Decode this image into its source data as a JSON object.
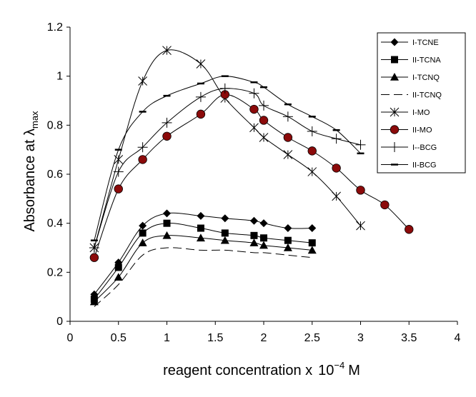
{
  "chart_data": {
    "type": "line",
    "title": "",
    "xlabel": "reagent concentration x",
    "xlabel_power": "10",
    "xlabel_exponent": "−4",
    "xlabel_unit": "M",
    "ylabel": "Absorbance at λ",
    "ylabel_subscript": "max",
    "xlim": [
      0,
      4
    ],
    "ylim": [
      0,
      1.2
    ],
    "xticks": [
      0,
      0.5,
      1,
      1.5,
      2,
      2.5,
      3,
      3.5,
      4
    ],
    "xtick_labels": [
      "0",
      "0.5",
      "1",
      "1.5",
      "2",
      "2.5",
      "3",
      "3.5",
      "4"
    ],
    "yticks": [
      0,
      0.2,
      0.4,
      0.6,
      0.8,
      1.0,
      1.2
    ],
    "ytick_labels": [
      "0",
      "0.2",
      "0.4",
      "0.6",
      "0.8",
      "1",
      "1.2"
    ],
    "grid": false,
    "legend_position": "top-right",
    "series": [
      {
        "name": "I-TCNE",
        "marker": "diamond",
        "dash": "",
        "color": "#000000",
        "x": [
          0.25,
          0.5,
          0.75,
          1.0,
          1.35,
          1.6,
          1.9,
          2.0,
          2.25,
          2.5
        ],
        "y": [
          0.11,
          0.24,
          0.39,
          0.44,
          0.43,
          0.42,
          0.41,
          0.4,
          0.38,
          0.38
        ]
      },
      {
        "name": "II-TCNA",
        "marker": "square",
        "dash": "",
        "color": "#000000",
        "x": [
          0.25,
          0.5,
          0.75,
          1.0,
          1.35,
          1.6,
          1.9,
          2.0,
          2.25,
          2.5
        ],
        "y": [
          0.09,
          0.22,
          0.36,
          0.4,
          0.38,
          0.36,
          0.35,
          0.34,
          0.33,
          0.32
        ]
      },
      {
        "name": "I-TCNQ",
        "marker": "triangle",
        "dash": "",
        "color": "#000000",
        "x": [
          0.25,
          0.5,
          0.75,
          1.0,
          1.35,
          1.6,
          1.9,
          2.0,
          2.25,
          2.5
        ],
        "y": [
          0.08,
          0.18,
          0.32,
          0.35,
          0.34,
          0.33,
          0.32,
          0.31,
          0.3,
          0.29
        ]
      },
      {
        "name": "II-TCNQ",
        "marker": "none",
        "dash": "12,6",
        "color": "#000000",
        "x": [
          0.25,
          0.5,
          0.75,
          1.0,
          1.35,
          1.6,
          1.9,
          2.0,
          2.25,
          2.5
        ],
        "y": [
          0.06,
          0.15,
          0.27,
          0.3,
          0.29,
          0.29,
          0.28,
          0.28,
          0.27,
          0.26
        ]
      },
      {
        "name": "I-MO",
        "marker": "asterisk",
        "dash": "",
        "color": "#000000",
        "x": [
          0.25,
          0.5,
          0.75,
          1.0,
          1.35,
          1.6,
          1.9,
          2.0,
          2.25,
          2.5,
          2.75,
          3.0
        ],
        "y": [
          0.3,
          0.66,
          0.98,
          1.105,
          1.05,
          0.91,
          0.79,
          0.75,
          0.68,
          0.61,
          0.51,
          0.39
        ]
      },
      {
        "name": "II-MO",
        "marker": "circle",
        "dash": "",
        "color": "#000000",
        "x": [
          0.25,
          0.5,
          0.75,
          1.0,
          1.35,
          1.6,
          1.9,
          2.0,
          2.25,
          2.5,
          2.75,
          3.0,
          3.25,
          3.5
        ],
        "y": [
          0.26,
          0.54,
          0.66,
          0.755,
          0.845,
          0.925,
          0.865,
          0.82,
          0.75,
          0.695,
          0.625,
          0.535,
          0.475,
          0.375
        ]
      },
      {
        "name": "I--BCG",
        "marker": "plus",
        "dash": "",
        "color": "#000000",
        "x": [
          0.25,
          0.5,
          0.75,
          1.0,
          1.35,
          1.6,
          1.9,
          2.0,
          2.25,
          2.5,
          2.75,
          3.0
        ],
        "y": [
          0.3,
          0.61,
          0.71,
          0.81,
          0.915,
          0.95,
          0.93,
          0.88,
          0.835,
          0.775,
          0.745,
          0.72
        ]
      },
      {
        "name": "II-BCG",
        "marker": "dash",
        "dash": "",
        "color": "#000000",
        "x": [
          0.25,
          0.5,
          0.75,
          1.0,
          1.35,
          1.6,
          1.9,
          2.0,
          2.25,
          2.5,
          2.75,
          3.0
        ],
        "y": [
          0.33,
          0.7,
          0.855,
          0.92,
          0.97,
          1.0,
          0.975,
          0.955,
          0.885,
          0.835,
          0.78,
          0.685
        ]
      }
    ]
  },
  "colors": {
    "marker_fill": "#000000",
    "circle_fill": "#8b0a0a",
    "line": "#000000",
    "background": "#ffffff"
  }
}
